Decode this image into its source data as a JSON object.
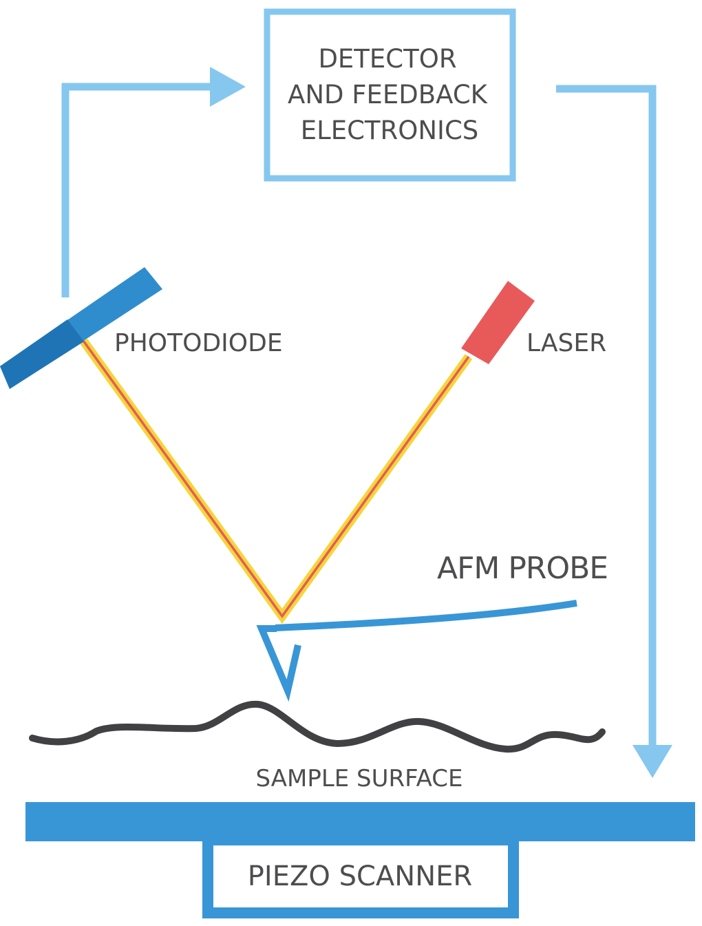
{
  "labels": {
    "detector_line1": "DETECTOR",
    "detector_line2": "AND FEEDBACK",
    "detector_line3": "ELECTRONICS",
    "photodiode": "PHOTODIODE",
    "laser": "LASER",
    "afm_probe": "AFM PROBE",
    "sample_surface": "SAMPLE SURFACE",
    "piezo_scanner": "PIEZO SCANNER"
  },
  "colors": {
    "feedback_arrow": "#85c7ef",
    "box_outline": "#85c7ef",
    "photodiode": "#2f8dcd",
    "photodiode_dark": "#1f74b5",
    "laser": "#e85a5a",
    "beam_outer": "#f3d63a",
    "beam_inner": "#e85a5a",
    "probe": "#3896d6",
    "surface": "#414042",
    "stage": "#3896d6",
    "text": "#4d4d4f"
  }
}
